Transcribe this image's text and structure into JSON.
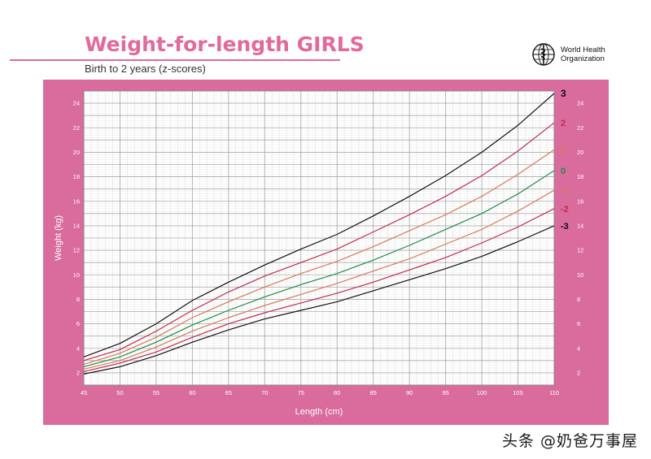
{
  "header": {
    "title": "Weight-for-length GIRLS",
    "subtitle": "Birth to 2 years (z-scores)"
  },
  "logo": {
    "org_line1": "World Health",
    "org_line2": "Organization",
    "icon": "who-emblem-icon"
  },
  "watermark": "头条 @奶爸万事屋",
  "colors": {
    "accent_pink": "#d96b9d",
    "title_pink": "#e2699c",
    "line_z0": "#1f8c4a",
    "line_z_pm1": "#d67a55",
    "line_z_pm2": "#c22b4e",
    "line_z_pm3": "#111111"
  },
  "chart_data": {
    "type": "line",
    "title": "Weight-for-length GIRLS",
    "subtitle": "Birth to 2 years (z-scores)",
    "xlabel": "Length (cm)",
    "ylabel": "Weight (kg)",
    "xlim": [
      45,
      110
    ],
    "ylim": [
      1,
      25
    ],
    "grid": true,
    "x_ticks": [
      "45",
      "50",
      "55",
      "60",
      "65",
      "70",
      "75",
      "80",
      "85",
      "90",
      "95",
      "100",
      "105",
      "110"
    ],
    "y_ticks": [
      "2",
      "4",
      "6",
      "8",
      "10",
      "12",
      "14",
      "16",
      "18",
      "20",
      "22",
      "24"
    ],
    "x": [
      45,
      50,
      55,
      60,
      65,
      70,
      75,
      80,
      85,
      90,
      95,
      100,
      105,
      110
    ],
    "series": [
      {
        "name": "3",
        "color": "#111111",
        "values": [
          3.3,
          4.4,
          6.0,
          7.9,
          9.4,
          10.8,
          12.1,
          13.3,
          14.8,
          16.4,
          18.1,
          20.0,
          22.2,
          24.8
        ]
      },
      {
        "name": "2",
        "color": "#c22b4e",
        "values": [
          3.0,
          3.9,
          5.4,
          7.1,
          8.6,
          9.9,
          11.0,
          12.1,
          13.5,
          14.9,
          16.4,
          18.1,
          20.1,
          22.4
        ]
      },
      {
        "name": "1",
        "color": "#d67a55",
        "values": [
          2.7,
          3.6,
          4.9,
          6.5,
          7.8,
          9.0,
          10.1,
          11.1,
          12.3,
          13.6,
          14.9,
          16.4,
          18.2,
          20.2
        ]
      },
      {
        "name": "0",
        "color": "#1f8c4a",
        "values": [
          2.5,
          3.3,
          4.5,
          5.9,
          7.1,
          8.2,
          9.2,
          10.1,
          11.2,
          12.4,
          13.7,
          15.0,
          16.6,
          18.5
        ]
      },
      {
        "name": "-1",
        "color": "#d67a55",
        "values": [
          2.3,
          3.0,
          4.1,
          5.4,
          6.5,
          7.5,
          8.4,
          9.3,
          10.3,
          11.3,
          12.5,
          13.7,
          15.2,
          16.9
        ]
      },
      {
        "name": "-2",
        "color": "#c22b4e",
        "values": [
          2.1,
          2.8,
          3.7,
          4.9,
          6.0,
          6.9,
          7.7,
          8.5,
          9.4,
          10.4,
          11.4,
          12.6,
          13.9,
          15.4
        ]
      },
      {
        "name": "-3",
        "color": "#111111",
        "values": [
          1.9,
          2.5,
          3.4,
          4.5,
          5.5,
          6.4,
          7.1,
          7.8,
          8.7,
          9.6,
          10.5,
          11.5,
          12.7,
          14.0
        ]
      }
    ]
  }
}
